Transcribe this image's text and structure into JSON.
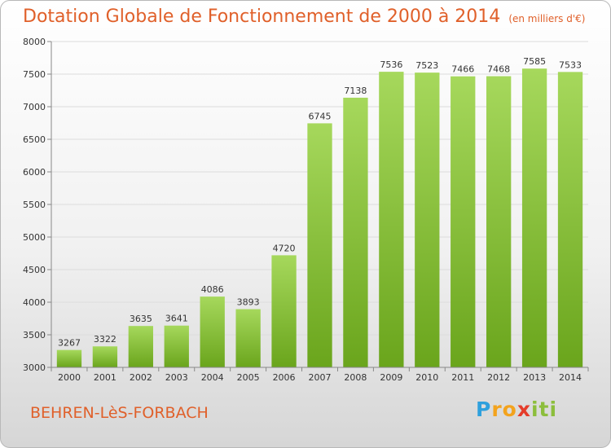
{
  "header": {
    "title": "Dotation Globale de Fonctionnement de 2000 à 2014",
    "subtitle": "(en milliers d'€)"
  },
  "footer": {
    "commune": "BEHREN-LèS-FORBACH"
  },
  "logo": {
    "parts": [
      "P",
      "ro",
      "x",
      "iti"
    ]
  },
  "colors": {
    "bar_top": "#a6d85c",
    "bar_bottom": "#6aa51c",
    "title": "#e0602a"
  },
  "chart_data": {
    "type": "bar",
    "title": "Dotation Globale de Fonctionnement de 2000 à 2014",
    "subtitle": "(en milliers d'€)",
    "xlabel": "",
    "ylabel": "",
    "categories": [
      "2000",
      "2001",
      "2002",
      "2003",
      "2004",
      "2005",
      "2006",
      "2007",
      "2008",
      "2009",
      "2010",
      "2011",
      "2012",
      "2013",
      "2014"
    ],
    "values": [
      3267,
      3322,
      3635,
      3641,
      4086,
      3893,
      4720,
      6745,
      7138,
      7536,
      7523,
      7466,
      7468,
      7585,
      7533
    ],
    "data_labels": [
      "3267",
      "3322",
      "3635",
      "3641",
      "4086",
      "3893",
      "4720",
      "6745",
      "7138",
      "7536",
      "7523",
      "7466",
      "7468",
      "7585",
      "7533"
    ],
    "ylim": [
      3000,
      8000
    ],
    "yticks": [
      3000,
      3500,
      4000,
      4500,
      5000,
      5500,
      6000,
      6500,
      7000,
      7500,
      8000
    ],
    "ytick_labels": [
      "3000",
      "3500",
      "4000",
      "4500",
      "5000",
      "5500",
      "6000",
      "6500",
      "7000",
      "7500",
      "8000"
    ],
    "grid": true,
    "legend": "none"
  }
}
